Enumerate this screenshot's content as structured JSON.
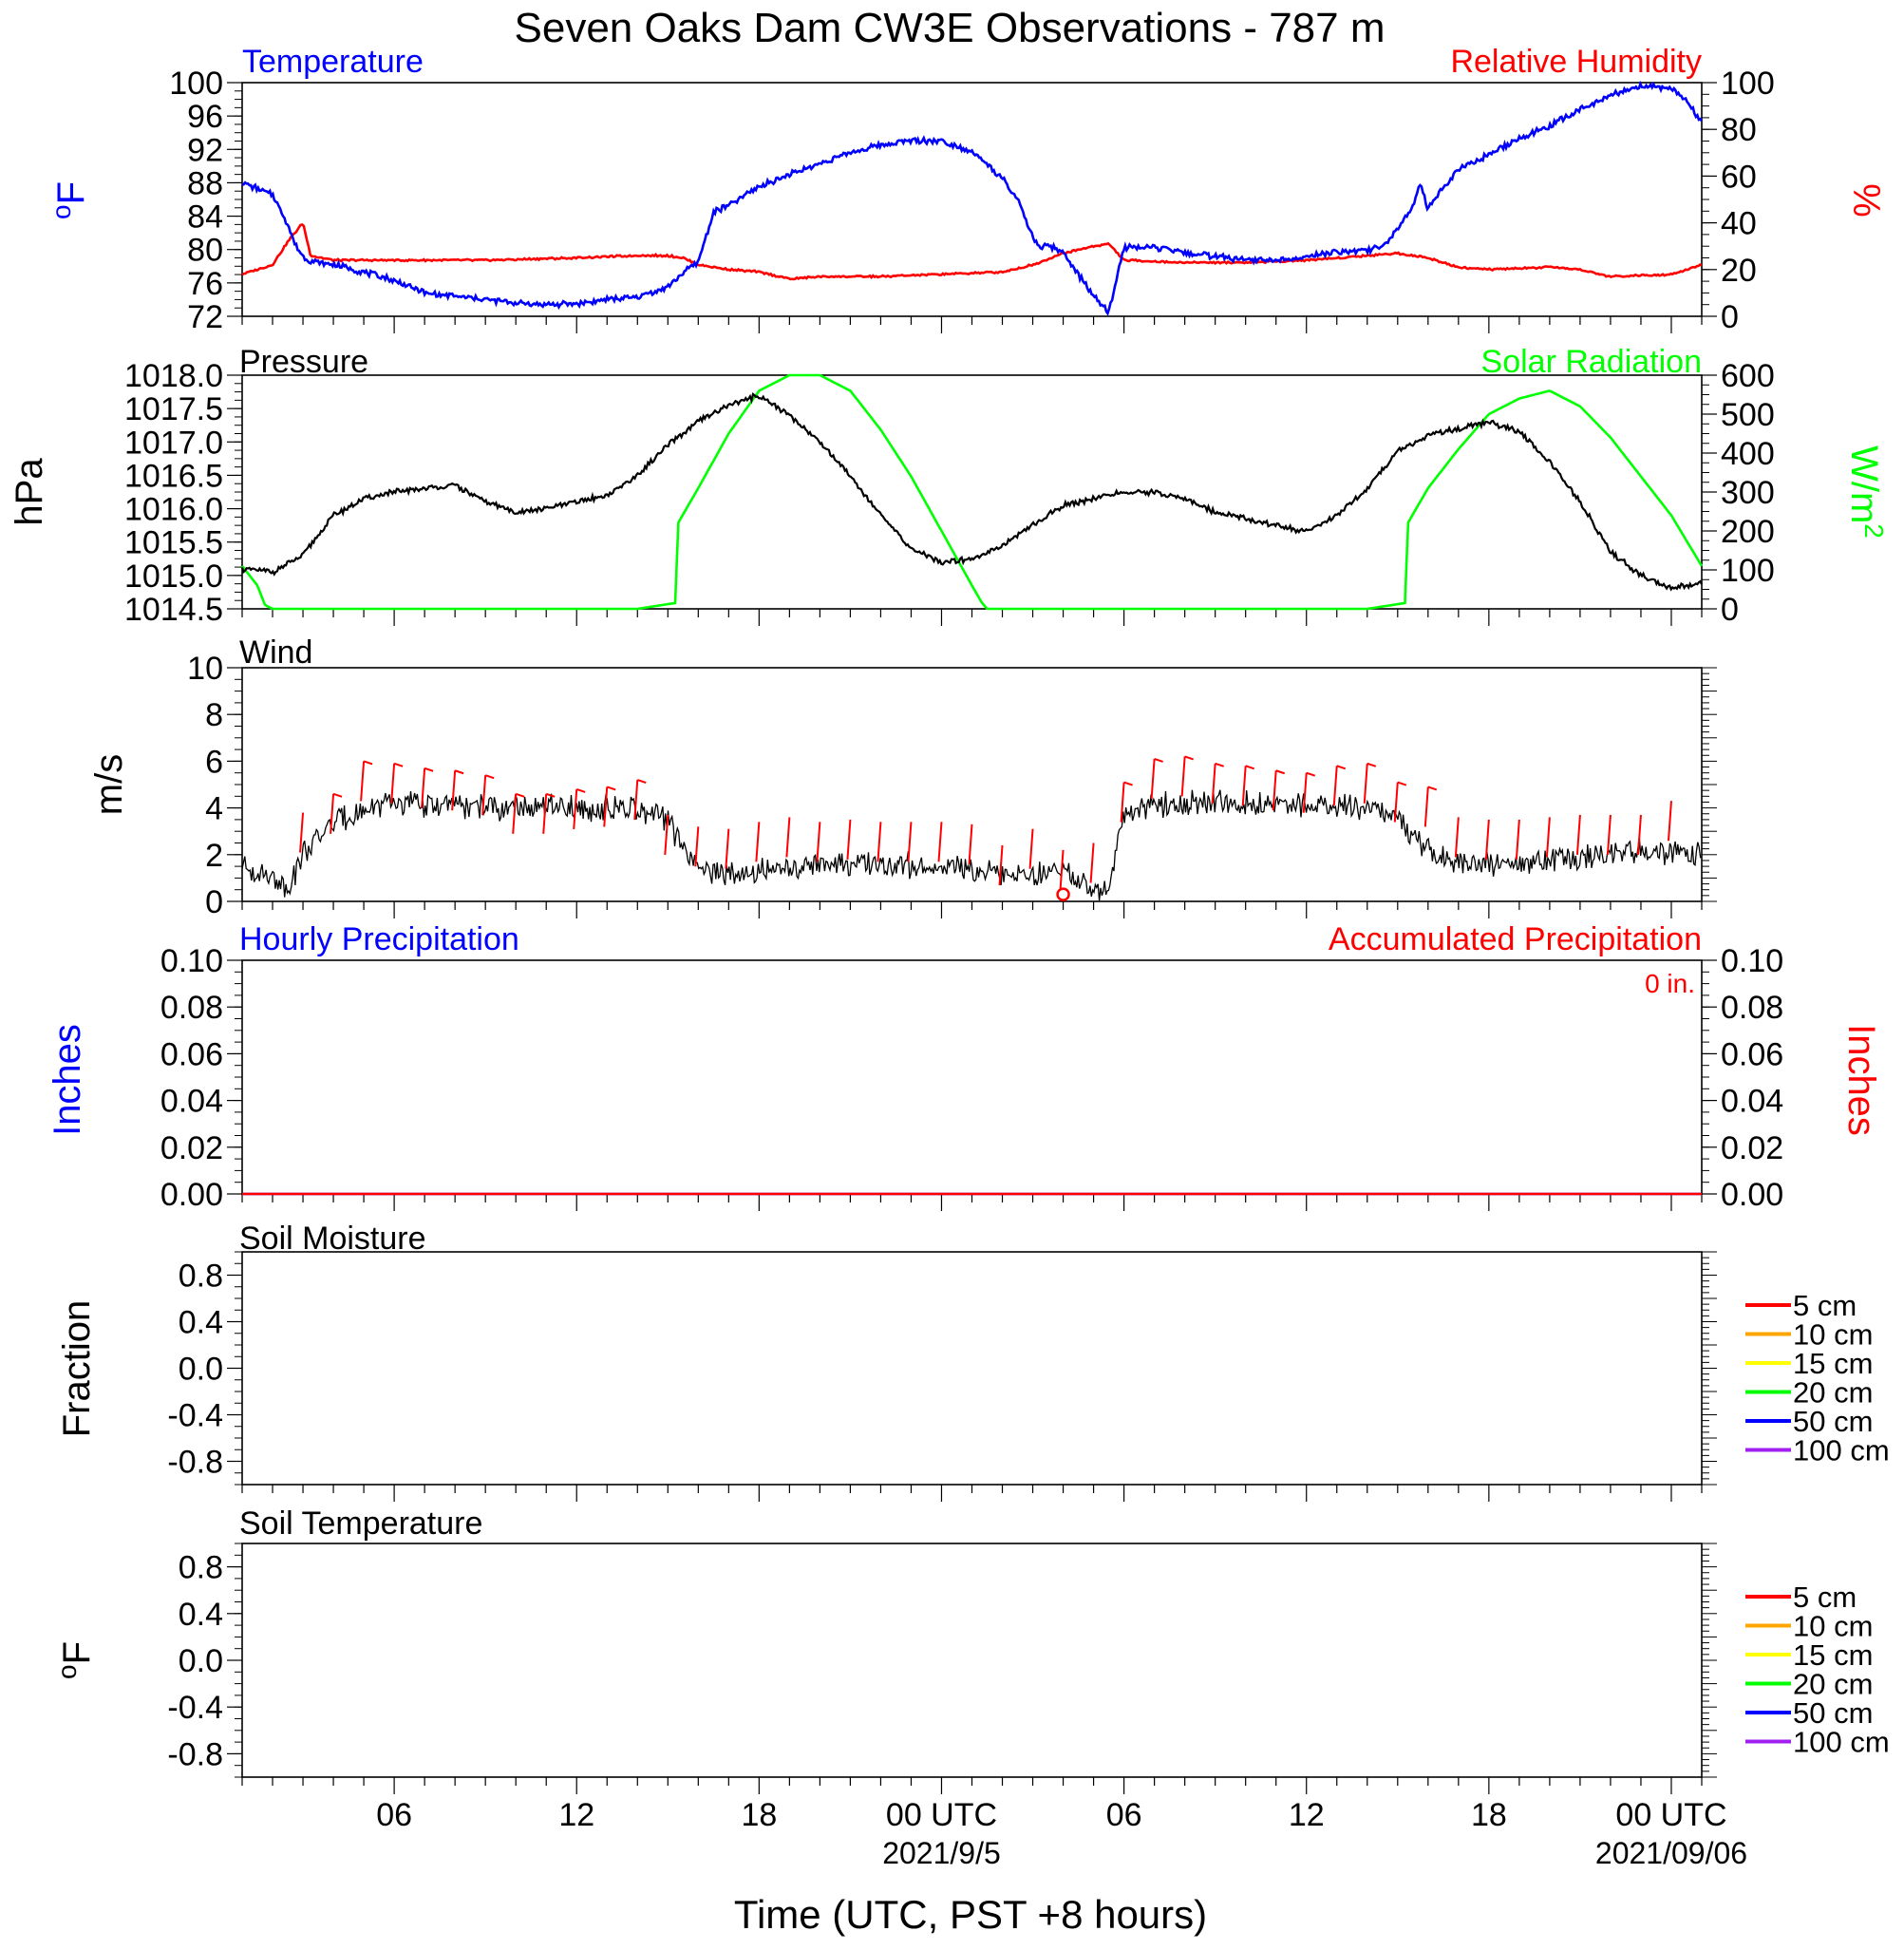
{
  "title": "Seven Oaks Dam CW3E Observations - 787 m",
  "xaxis": {
    "label": "Time (UTC, PST +8 hours)",
    "range": [
      "2021-09-04T01:00Z",
      "2021-09-06T01:00Z"
    ],
    "ticks": [
      {
        "time": "2021-09-04T06:00Z",
        "label": "06",
        "sub": ""
      },
      {
        "time": "2021-09-04T12:00Z",
        "label": "12",
        "sub": ""
      },
      {
        "time": "2021-09-04T18:00Z",
        "label": "18",
        "sub": ""
      },
      {
        "time": "2021-09-05T00:00Z",
        "label": "00 UTC",
        "sub": "2021/9/5"
      },
      {
        "time": "2021-09-05T06:00Z",
        "label": "06",
        "sub": ""
      },
      {
        "time": "2021-09-05T12:00Z",
        "label": "12",
        "sub": ""
      },
      {
        "time": "2021-09-05T18:00Z",
        "label": "18",
        "sub": ""
      },
      {
        "time": "2021-09-06T00:00Z",
        "label": "00 UTC",
        "sub": "2021/09/06"
      }
    ]
  },
  "panels": {
    "temperature": {
      "title_left": "Temperature",
      "title_right": "Relative Humidity",
      "left_unit": "oF",
      "right_unit": "%",
      "left_ticks": [
        "100",
        "96",
        "92",
        "88",
        "84",
        "80",
        "76",
        "72"
      ],
      "right_ticks": [
        "100",
        "80",
        "60",
        "40",
        "20",
        "0"
      ]
    },
    "pressure": {
      "title_left": "Pressure",
      "title_right": "Solar Radiation",
      "left_unit": "hPa",
      "right_unit": "W/m2",
      "left_ticks": [
        "1018.0",
        "1017.5",
        "1017.0",
        "1016.5",
        "1016.0",
        "1015.5",
        "1015.0",
        "1014.5"
      ],
      "right_ticks": [
        "600",
        "500",
        "400",
        "300",
        "200",
        "100",
        "0"
      ]
    },
    "wind": {
      "title_left": "Wind",
      "left_unit": "m/s",
      "left_ticks": [
        "10",
        "8",
        "6",
        "4",
        "2",
        "0"
      ]
    },
    "precip": {
      "title_left": "Hourly Precipitation",
      "title_right": "Accumulated Precipitation",
      "total_text": "0 in.",
      "left_unit": "Inches",
      "right_unit": "Inches",
      "left_ticks": [
        "0.10",
        "0.08",
        "0.06",
        "0.04",
        "0.02",
        "0.00"
      ],
      "right_ticks": [
        "0.10",
        "0.08",
        "0.06",
        "0.04",
        "0.02",
        "0.00"
      ]
    },
    "soil_moisture": {
      "title_left": "Soil Moisture",
      "left_unit": "Fraction",
      "left_ticks": [
        "0.8",
        "0.4",
        "0.0",
        "-0.4",
        "-0.8"
      ]
    },
    "soil_temperature": {
      "title_left": "Soil Temperature",
      "left_unit": "oF",
      "left_ticks": [
        "0.8",
        "0.4",
        "0.0",
        "-0.4",
        "-0.8"
      ]
    }
  },
  "legend_depths": [
    {
      "label": "5 cm",
      "color": "#ff0000"
    },
    {
      "label": "10 cm",
      "color": "#ffa500"
    },
    {
      "label": "15 cm",
      "color": "#ffff00"
    },
    {
      "label": "20 cm",
      "color": "#00ff00"
    },
    {
      "label": "50 cm",
      "color": "#0000ff"
    },
    {
      "label": "100 cm",
      "color": "#a020f0"
    }
  ],
  "colors": {
    "temperature": "#0000ff",
    "humidity": "#ff0000",
    "pressure": "#000000",
    "solar": "#00ff00",
    "wind": "#000000",
    "barbs": "#ff0000",
    "precip_left": "#0000ff",
    "precip_right": "#ff0000"
  },
  "chart_data": [
    {
      "type": "line",
      "panel": "temperature",
      "ylim_left": [
        72,
        100
      ],
      "ylim_right": [
        0,
        100
      ],
      "series": [
        {
          "name": "Temperature",
          "axis": "left",
          "unit": "F",
          "x": [
            "09-04 01:00",
            "09-04 01:30",
            "09-04 02:00",
            "09-04 02:30",
            "09-04 02:45",
            "09-04 03:00",
            "09-04 03:15",
            "09-04 04:00",
            "09-04 05:00",
            "09-04 06:00",
            "09-04 07:00",
            "09-04 08:00",
            "09-04 09:00",
            "09-04 10:00",
            "09-04 11:00",
            "09-04 12:00",
            "09-04 13:00",
            "09-04 14:00",
            "09-04 15:00",
            "09-04 15:30",
            "09-04 15:45",
            "09-04 16:00",
            "09-04 16:30",
            "09-04 17:00",
            "09-04 18:00",
            "09-04 19:00",
            "09-04 20:00",
            "09-04 21:00",
            "09-04 22:00",
            "09-04 23:00",
            "09-05 00:00",
            "09-05 01:00",
            "09-05 02:00",
            "09-05 02:30",
            "09-05 03:00",
            "09-05 03:15",
            "09-05 03:30",
            "09-05 04:00",
            "09-05 04:30",
            "09-05 05:00",
            "09-05 05:15",
            "09-05 05:30",
            "09-05 06:00",
            "09-05 07:00",
            "09-05 08:00",
            "09-05 09:00",
            "09-05 10:00",
            "09-05 11:00",
            "09-05 12:00",
            "09-05 13:00",
            "09-05 14:00",
            "09-05 14:30",
            "09-05 15:00",
            "09-05 15:30",
            "09-05 15:45",
            "09-05 16:00",
            "09-05 16:30",
            "09-05 17:00",
            "09-05 18:00",
            "09-05 19:00",
            "09-05 20:00",
            "09-05 21:00",
            "09-05 22:00",
            "09-05 23:00",
            "09-06 00:00",
            "09-06 00:30",
            "09-06 01:00"
          ],
          "values": [
            88.0,
            87.3,
            86.6,
            83.0,
            80.5,
            79.2,
            78.6,
            78.2,
            77.3,
            76.3,
            74.8,
            74.4,
            74.0,
            73.6,
            73.4,
            73.5,
            74.0,
            74.3,
            75.5,
            77.2,
            77.9,
            78.5,
            84.5,
            85.3,
            87.5,
            89.0,
            90.3,
            91.6,
            92.5,
            93.1,
            93.0,
            91.8,
            88.5,
            86.0,
            81.5,
            80.0,
            80.6,
            79.5,
            77.0,
            74.5,
            73.3,
            72.5,
            80.3,
            80.2,
            79.6,
            79.2,
            78.8,
            78.7,
            79.2,
            79.7,
            79.9,
            80.4,
            82.5,
            85.2,
            87.9,
            84.8,
            87.5,
            89.6,
            91.4,
            93.3,
            94.8,
            96.8,
            98.5,
            99.6,
            99.4,
            97.8,
            95.2
          ]
        },
        {
          "name": "Relative Humidity",
          "axis": "right",
          "unit": "%",
          "x": [
            "09-04 01:00",
            "09-04 02:00",
            "09-04 02:30",
            "09-04 03:00",
            "09-04 03:15",
            "09-04 04:00",
            "09-04 06:00",
            "09-04 09:00",
            "09-04 12:00",
            "09-04 14:00",
            "09-04 15:00",
            "09-04 15:30",
            "09-04 16:00",
            "09-04 17:00",
            "09-04 18:00",
            "09-04 19:00",
            "09-04 20:00",
            "09-04 22:00",
            "09-05 00:00",
            "09-05 02:00",
            "09-05 03:00",
            "09-05 04:00",
            "09-05 05:00",
            "09-05 05:30",
            "09-05 06:00",
            "09-05 08:00",
            "09-05 10:00",
            "09-05 12:00",
            "09-05 14:00",
            "09-05 15:00",
            "09-05 16:00",
            "09-05 17:00",
            "09-05 18:00",
            "09-05 20:00",
            "09-05 21:00",
            "09-05 22:00",
            "09-06 00:00",
            "09-06 01:00"
          ],
          "values": [
            18,
            22,
            32,
            40,
            26,
            24,
            24,
            24,
            25,
            26,
            26,
            25,
            22,
            20,
            19,
            16,
            17,
            17,
            18,
            19,
            22,
            27,
            30,
            31,
            24,
            23,
            23,
            24,
            26,
            27,
            25,
            21,
            20,
            21,
            20,
            17,
            18,
            22
          ]
        }
      ]
    },
    {
      "type": "line",
      "panel": "pressure",
      "ylim_left": [
        1014.5,
        1018.0
      ],
      "ylim_right": [
        0,
        600
      ],
      "series": [
        {
          "name": "Pressure",
          "axis": "left",
          "unit": "hPa",
          "x": [
            "09-04 01:00",
            "09-04 02:00",
            "09-04 03:00",
            "09-04 04:00",
            "09-04 05:00",
            "09-04 06:00",
            "09-04 07:00",
            "09-04 08:00",
            "09-04 09:00",
            "09-04 10:00",
            "09-04 11:00",
            "09-04 12:00",
            "09-04 13:00",
            "09-04 14:00",
            "09-04 15:00",
            "09-04 16:00",
            "09-04 17:00",
            "09-04 18:00",
            "09-04 19:00",
            "09-04 20:00",
            "09-04 21:00",
            "09-04 22:00",
            "09-04 23:00",
            "09-05 00:00",
            "09-05 01:00",
            "09-05 02:00",
            "09-05 03:00",
            "09-05 04:00",
            "09-05 05:00",
            "09-05 06:00",
            "09-05 07:00",
            "09-05 08:00",
            "09-05 09:00",
            "09-05 10:00",
            "09-05 11:00",
            "09-05 12:00",
            "09-05 13:00",
            "09-05 14:00",
            "09-05 15:00",
            "09-05 16:00",
            "09-05 17:00",
            "09-05 18:00",
            "09-05 19:00",
            "09-05 20:00",
            "09-05 21:00",
            "09-05 22:00",
            "09-05 23:00",
            "09-06 00:00",
            "09-06 01:00"
          ],
          "values": [
            1015.1,
            1015.05,
            1015.3,
            1015.9,
            1016.15,
            1016.25,
            1016.3,
            1016.35,
            1016.1,
            1015.95,
            1016.0,
            1016.1,
            1016.2,
            1016.5,
            1016.95,
            1017.3,
            1017.55,
            1017.7,
            1017.4,
            1017.0,
            1016.5,
            1015.9,
            1015.4,
            1015.2,
            1015.25,
            1015.45,
            1015.75,
            1016.05,
            1016.15,
            1016.25,
            1016.25,
            1016.15,
            1015.95,
            1015.85,
            1015.75,
            1015.65,
            1015.9,
            1016.3,
            1016.85,
            1017.1,
            1017.2,
            1017.3,
            1017.15,
            1016.7,
            1016.1,
            1015.35,
            1015.0,
            1014.8,
            1014.9
          ]
        },
        {
          "name": "Solar Radiation",
          "axis": "right",
          "unit": "W/m2",
          "x": [
            "09-04 01:00",
            "09-04 01:30",
            "09-04 01:45",
            "09-04 02:00",
            "09-04 14:00",
            "09-04 15:15",
            "09-04 15:20",
            "09-04 16:00",
            "09-04 17:00",
            "09-04 18:00",
            "09-04 19:00",
            "09-04 20:00",
            "09-04 21:00",
            "09-04 22:00",
            "09-04 23:00",
            "09-05 00:00",
            "09-05 01:00",
            "09-05 01:20",
            "09-05 01:30",
            "09-05 14:00",
            "09-05 15:15",
            "09-05 15:20",
            "09-05 16:00",
            "09-05 17:00",
            "09-05 18:00",
            "09-05 19:00",
            "09-05 20:00",
            "09-05 21:00",
            "09-05 22:00",
            "09-05 23:00",
            "09-06 00:00",
            "09-06 01:00"
          ],
          "values": [
            110,
            60,
            10,
            0,
            0,
            15,
            220,
            310,
            450,
            560,
            600,
            600,
            560,
            460,
            340,
            200,
            60,
            15,
            0,
            0,
            15,
            220,
            310,
            410,
            500,
            540,
            560,
            520,
            440,
            340,
            240,
            110
          ]
        }
      ]
    },
    {
      "type": "line",
      "panel": "wind",
      "ylim": [
        0,
        10
      ],
      "series": [
        {
          "name": "Wind",
          "unit": "m/s",
          "x": [
            "09-04 01:00",
            "09-04 02:00",
            "09-04 02:30",
            "09-04 03:00",
            "09-04 04:00",
            "09-04 05:00",
            "09-04 06:00",
            "09-04 08:00",
            "09-04 10:00",
            "09-04 12:00",
            "09-04 14:00",
            "09-04 15:00",
            "09-04 15:30",
            "09-04 16:00",
            "09-04 17:00",
            "09-04 20:00",
            "09-05 00:00",
            "09-05 02:00",
            "09-05 03:00",
            "09-05 04:00",
            "09-05 04:30",
            "09-05 05:00",
            "09-05 05:30",
            "09-05 06:00",
            "09-05 07:00",
            "09-05 09:00",
            "09-05 12:00",
            "09-05 14:00",
            "09-05 15:00",
            "09-05 16:00",
            "09-05 17:00",
            "09-05 20:00",
            "09-05 23:00",
            "09-06 01:00"
          ],
          "values": [
            1.6,
            1.0,
            0.6,
            2.0,
            3.4,
            3.9,
            4.2,
            4.1,
            4.0,
            4.0,
            3.9,
            3.5,
            2.3,
            1.3,
            1.2,
            1.6,
            1.5,
            1.2,
            1.0,
            1.4,
            0.8,
            0.5,
            0.6,
            3.8,
            4.1,
            4.2,
            4.1,
            4.0,
            3.6,
            2.2,
            1.6,
            1.7,
            2.2,
            2.0
          ]
        },
        {
          "name": "barbs",
          "unit": "m/s",
          "x": [
            "09-04 03:00",
            "09-04 04:00",
            "09-04 05:00",
            "09-04 06:00",
            "09-04 07:00",
            "09-04 08:00",
            "09-04 09:00",
            "09-04 10:00",
            "09-04 11:00",
            "09-04 12:00",
            "09-04 13:00",
            "09-04 14:00",
            "09-04 15:00",
            "09-04 16:00",
            "09-04 17:00",
            "09-04 18:00",
            "09-04 19:00",
            "09-04 20:00",
            "09-04 21:00",
            "09-04 22:00",
            "09-04 23:00",
            "09-05 00:00",
            "09-05 01:00",
            "09-05 02:00",
            "09-05 03:00",
            "09-05 04:00",
            "09-05 05:00",
            "09-05 06:00",
            "09-05 07:00",
            "09-05 08:00",
            "09-05 09:00",
            "09-05 10:00",
            "09-05 11:00",
            "09-05 12:00",
            "09-05 13:00",
            "09-05 14:00",
            "09-05 15:00",
            "09-05 16:00",
            "09-05 17:00",
            "09-05 18:00",
            "09-05 19:00",
            "09-05 20:00",
            "09-05 21:00",
            "09-05 22:00",
            "09-05 23:00",
            "09-06 00:00"
          ],
          "values": [
            3.8,
            4.6,
            6.0,
            5.9,
            5.7,
            5.6,
            5.4,
            4.6,
            4.6,
            4.8,
            4.9,
            5.2,
            3.7,
            3.2,
            3.1,
            3.4,
            3.6,
            3.4,
            3.5,
            3.4,
            3.4,
            3.4,
            3.3,
            2.4,
            3.1,
            2.2,
            2.5,
            5.1,
            6.1,
            6.2,
            5.9,
            5.8,
            5.6,
            5.5,
            5.8,
            5.9,
            5.1,
            4.9,
            3.6,
            3.5,
            3.5,
            3.6,
            3.7,
            3.7,
            3.7,
            4.3
          ],
          "calm_marker": "09-05 04:00"
        }
      ]
    },
    {
      "type": "line",
      "panel": "precip",
      "ylim": [
        0,
        0.1
      ],
      "series": [
        {
          "name": "Hourly Precipitation",
          "unit": "in",
          "x": [
            "09-04 01:00",
            "09-06 01:00"
          ],
          "values": [
            0,
            0
          ]
        },
        {
          "name": "Accumulated Precipitation",
          "unit": "in",
          "x": [
            "09-04 01:00",
            "09-06 01:00"
          ],
          "values": [
            0,
            0
          ]
        }
      ]
    },
    {
      "type": "line",
      "panel": "soil_moisture",
      "ylim": [
        -1.0,
        1.0
      ],
      "series": []
    },
    {
      "type": "line",
      "panel": "soil_temperature",
      "ylim": [
        -1.0,
        1.0
      ],
      "series": []
    }
  ]
}
